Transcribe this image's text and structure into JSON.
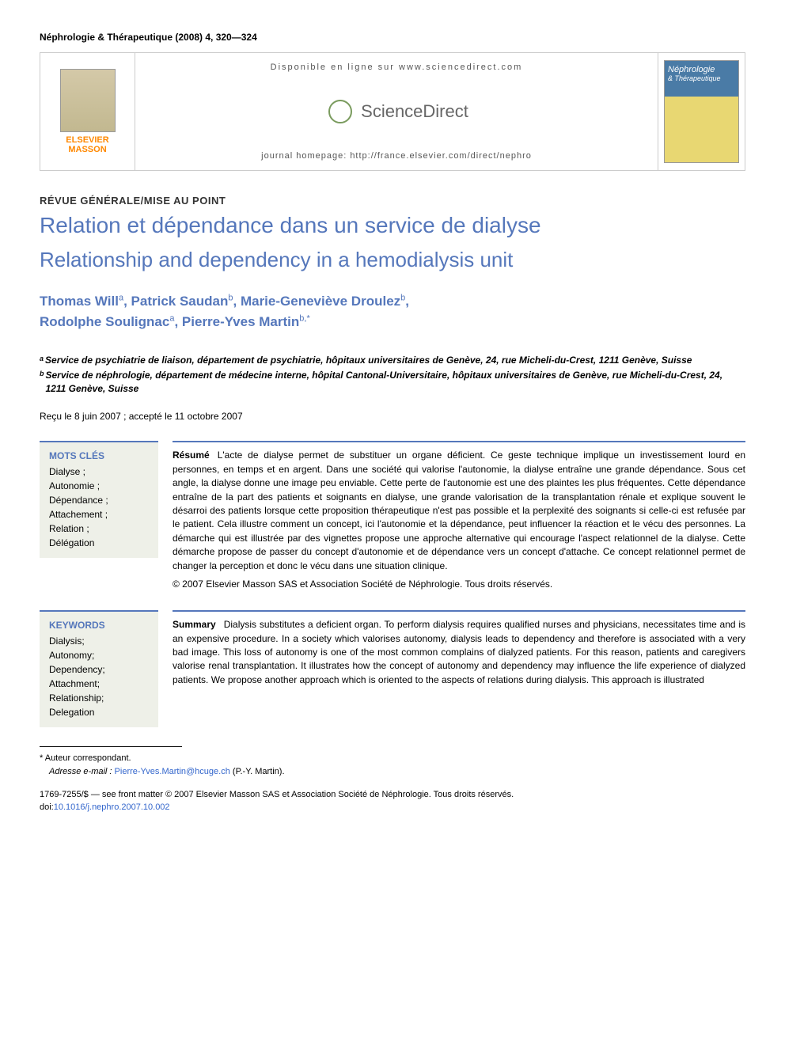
{
  "header": {
    "citation": "Néphrologie & Thérapeutique (2008) 4, 320—324"
  },
  "banner": {
    "available_text": "Disponible en ligne sur www.sciencedirect.com",
    "sd_brand": "ScienceDirect",
    "homepage": "journal homepage: http://france.elsevier.com/direct/nephro",
    "publisher_line1": "ELSEVIER",
    "publisher_line2": "MASSON",
    "journal_cover_line1": "Néphrologie",
    "journal_cover_line2": "& Thérapeutique"
  },
  "section": "RÉVUE GÉNÉRALE/MISE AU POINT",
  "title_fr": "Relation et dépendance dans un service de dialyse",
  "title_en": "Relationship and dependency in a hemodialysis unit",
  "authors": [
    {
      "name": "Thomas Will",
      "aff": "a"
    },
    {
      "name": "Patrick Saudan",
      "aff": "b"
    },
    {
      "name": "Marie-Geneviève Droulez",
      "aff": "b"
    },
    {
      "name": "Rodolphe Soulignac",
      "aff": "a"
    },
    {
      "name": "Pierre-Yves Martin",
      "aff": "b,*"
    }
  ],
  "affiliations": {
    "a": "Service de psychiatrie de liaison, département de psychiatrie, hôpitaux universitaires de Genève, 24, rue Micheli-du-Crest, 1211 Genève, Suisse",
    "b": "Service de néphrologie, département de médecine interne, hôpital Cantonal-Universitaire, hôpitaux universitaires de Genève, rue Micheli-du-Crest, 24, 1211 Genève, Suisse"
  },
  "dates": "Reçu le 8 juin 2007 ; accepté le 11 octobre 2007",
  "keywords_fr": {
    "heading": "MOTS CLÉS",
    "items": [
      "Dialyse ;",
      "Autonomie ;",
      "Dépendance ;",
      "Attachement ;",
      "Relation ;",
      "Délégation"
    ]
  },
  "keywords_en": {
    "heading": "KEYWORDS",
    "items": [
      "Dialysis;",
      "Autonomy;",
      "Dependency;",
      "Attachment;",
      "Relationship;",
      "Delegation"
    ]
  },
  "resume": {
    "label": "Résumé",
    "text": "L'acte de dialyse permet de substituer un organe déficient. Ce geste technique implique un investissement lourd en personnes, en temps et en argent. Dans une société qui valorise l'autonomie, la dialyse entraîne une grande dépendance. Sous cet angle, la dialyse donne une image peu enviable. Cette perte de l'autonomie est une des plaintes les plus fréquentes. Cette dépendance entraîne de la part des patients et soignants en dialyse, une grande valorisation de la transplantation rénale et explique souvent le désarroi des patients lorsque cette proposition thérapeutique n'est pas possible et la perplexité des soignants si celle-ci est refusée par le patient. Cela illustre comment un concept, ici l'autonomie et la dépendance, peut influencer la réaction et le vécu des personnes. La démarche qui est illustrée par des vignettes propose une approche alternative qui encourage l'aspect relationnel de la dialyse. Cette démarche propose de passer du concept d'autonomie et de dépendance vers un concept d'attache. Ce concept relationnel permet de changer la perception et donc le vécu dans une situation clinique.",
    "copyright": "© 2007 Elsevier Masson SAS et Association Société de Néphrologie. Tous droits réservés."
  },
  "summary": {
    "label": "Summary",
    "text": "Dialysis substitutes a deficient organ. To perform dialysis requires qualified nurses and physicians, necessitates time and is an expensive procedure. In a society which valorises autonomy, dialysis leads to dependency and therefore is associated with a very bad image. This loss of autonomy is one of the most common complains of dialyzed patients. For this reason, patients and caregivers valorise renal transplantation. It illustrates how the concept of autonomy and dependency may influence the life experience of dialyzed patients. We propose another approach which is oriented to the aspects of relations during dialysis. This approach is illustrated"
  },
  "footnotes": {
    "corr_label": "* Auteur correspondant.",
    "email_label": "Adresse e-mail :",
    "email": "Pierre-Yves.Martin@hcuge.ch",
    "email_person": "(P.-Y. Martin)."
  },
  "bottom": {
    "issn_line": "1769-7255/$ — see front matter © 2007 Elsevier Masson SAS et Association Société de Néphrologie. Tous droits réservés.",
    "doi_prefix": "doi:",
    "doi": "10.1016/j.nephro.2007.10.002"
  },
  "colors": {
    "title_blue": "#5577bb",
    "link_blue": "#3366cc",
    "box_bg": "#eef0e8",
    "banner_border": "#cccccc"
  }
}
